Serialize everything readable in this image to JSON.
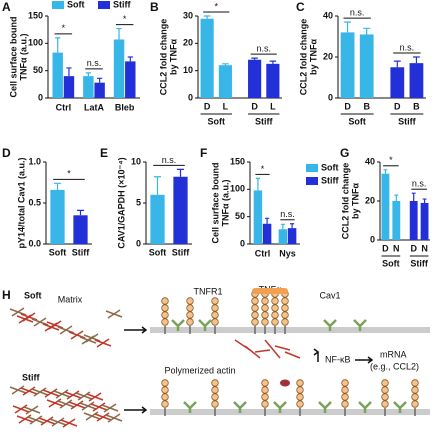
{
  "chart_data": [
    {
      "type": "bar",
      "panel": "A",
      "ylabel": [
        "Cell surface bound",
        "TNFα (a.u.)"
      ],
      "categories": [
        "Ctrl",
        "LatA",
        "Bleb"
      ],
      "series": [
        {
          "name": "Soft",
          "color": "#38b6e8",
          "values": [
            83,
            40,
            107
          ],
          "errors": [
            27,
            6,
            20
          ]
        },
        {
          "name": "Stiff",
          "color": "#2330d8",
          "values": [
            40,
            28,
            67
          ],
          "errors": [
            15,
            8,
            8
          ]
        }
      ],
      "legend": "top",
      "significance": [
        "*",
        "n.s.",
        "*"
      ],
      "ylim": [
        0,
        150
      ],
      "yticks": [
        0,
        50,
        100,
        150
      ]
    },
    {
      "type": "bar",
      "panel": "B",
      "ylabel": [
        "CCL2 fold change",
        "by TNFα"
      ],
      "categories": [
        "D",
        "L",
        "D",
        "L"
      ],
      "groups": [
        "Soft",
        "Stiff"
      ],
      "values": [
        29,
        12,
        14,
        12.5
      ],
      "errors": [
        1,
        0.5,
        0.6,
        1
      ],
      "colors": [
        "#38b6e8",
        "#38b6e8",
        "#2330d8",
        "#2330d8"
      ],
      "significance": [
        "*",
        "n.s."
      ],
      "ylim": [
        0,
        30
      ],
      "yticks": [
        0,
        10,
        20,
        30
      ]
    },
    {
      "type": "bar",
      "panel": "C",
      "ylabel": [
        "CCL2 fold change",
        "by TNFα"
      ],
      "categories": [
        "D",
        "B",
        "D",
        "B"
      ],
      "groups": [
        "Soft",
        "Stiff"
      ],
      "values": [
        32,
        31,
        15,
        17
      ],
      "errors": [
        5,
        3,
        3,
        3
      ],
      "colors": [
        "#38b6e8",
        "#38b6e8",
        "#2330d8",
        "#2330d8"
      ],
      "significance": [
        "n.s.",
        "n.s."
      ],
      "ylim": [
        0,
        40
      ],
      "yticks": [
        0,
        20,
        40
      ]
    },
    {
      "type": "bar",
      "panel": "D",
      "ylabel": [
        "pY14/total Cav1 (a.u.)"
      ],
      "categories": [
        "Soft",
        "Stiff"
      ],
      "values": [
        0.66,
        0.35
      ],
      "errors": [
        0.08,
        0.06
      ],
      "colors": [
        "#38b6e8",
        "#2330d8"
      ],
      "significance": [
        "*"
      ],
      "ylim": [
        0,
        1.0
      ],
      "yticks": [
        {
          "value": 0,
          "label": "0.0"
        },
        {
          "value": 0.5,
          "label": "0.5"
        },
        {
          "value": 1.0,
          "label": "1.0"
        }
      ]
    },
    {
      "type": "bar",
      "panel": "E",
      "ylabel": [
        "CAV1/GAPDH (×10⁻⁴)"
      ],
      "categories": [
        "Soft",
        "Stiff"
      ],
      "values": [
        6,
        8.2
      ],
      "errors": [
        2.2,
        0.9
      ],
      "colors": [
        "#38b6e8",
        "#2330d8"
      ],
      "significance": [
        "n.s."
      ],
      "ylim": [
        0,
        10
      ],
      "yticks": [
        0,
        5,
        10
      ]
    },
    {
      "type": "bar",
      "panel": "F",
      "ylabel": [
        "Cell surface bound",
        "TNFα (a.u.)"
      ],
      "categories": [
        "Ctrl",
        "Nys"
      ],
      "series": [
        {
          "name": "Soft",
          "color": "#38b6e8",
          "values": [
            98,
            27
          ],
          "errors": [
            22,
            9
          ]
        },
        {
          "name": "Stiff",
          "color": "#2330d8",
          "values": [
            37,
            29
          ],
          "errors": [
            10,
            8
          ]
        }
      ],
      "legend": "right",
      "significance": [
        "*",
        "n.s."
      ],
      "ylim": [
        0,
        150
      ],
      "yticks": [
        0,
        50,
        100,
        150
      ]
    },
    {
      "type": "bar",
      "panel": "G",
      "ylabel": [
        "CCL2 fold change",
        "by TNFα"
      ],
      "categories": [
        "D",
        "N",
        "D",
        "N"
      ],
      "groups": [
        "Soft",
        "Stiff"
      ],
      "values": [
        34,
        20,
        20,
        19
      ],
      "errors": [
        2,
        3,
        4,
        2
      ],
      "colors": [
        "#38b6e8",
        "#38b6e8",
        "#2330d8",
        "#2330d8"
      ],
      "significance": [
        "*",
        "n.s."
      ],
      "ylim": [
        0,
        40
      ],
      "yticks": [
        0,
        20,
        40
      ]
    }
  ],
  "diagram": {
    "panel": "H",
    "top_title": "Soft",
    "bottom_title": "Stiff",
    "matrix": "Matrix",
    "tnfr1": "TNFR1",
    "tnf": "TNFα",
    "cav1": "Cav1",
    "actin": "Polymerized actin",
    "nfkb": "NF-κB",
    "mrna": "mRNA",
    "mrna_example": "(e.g., CCL2)"
  }
}
